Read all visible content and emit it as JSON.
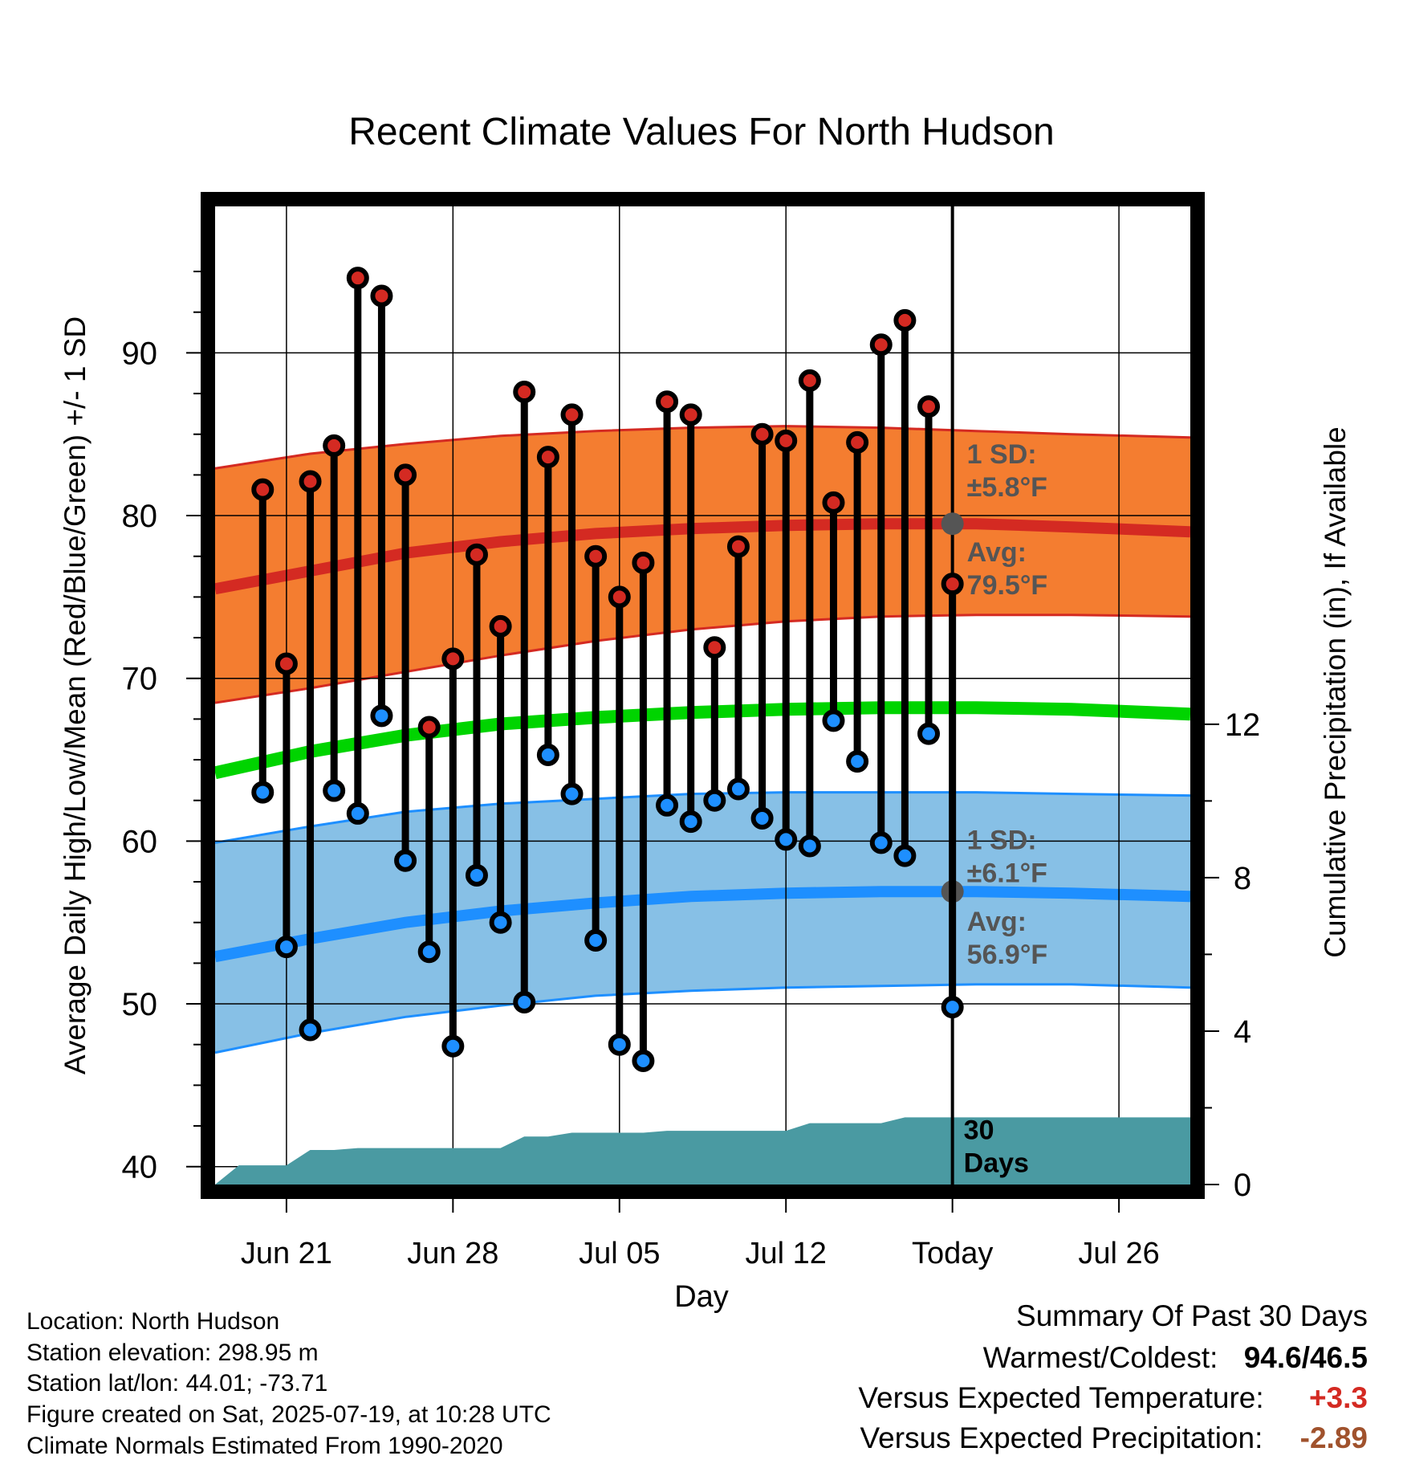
{
  "chart_data": {
    "type": "line",
    "title": "Recent Climate Values For North Hudson",
    "xlabel": "Day",
    "ylabel": "Average Daily High/Low/Mean (Red/Blue/Green) +/- 1 SD",
    "y2label": "Cumulative Precipitation (in), If Available",
    "ylim": [
      38.9,
      99
    ],
    "y2lim": [
      0,
      25.5
    ],
    "yticks": [
      "40",
      "50",
      "60",
      "70",
      "80",
      "90"
    ],
    "y2ticks": [
      "0",
      "4",
      "8",
      "12"
    ],
    "xlim": [
      "Jun 18",
      "Jul 29"
    ],
    "xticks": [
      {
        "date": "Jun 21",
        "label": "Jun 21"
      },
      {
        "date": "Jun 28",
        "label": "Jun 28"
      },
      {
        "date": "Jul 05",
        "label": "Jul 05"
      },
      {
        "date": "Jul 12",
        "label": "Jul 12"
      },
      {
        "date": "Jul 19",
        "label": "Today"
      },
      {
        "date": "Jul 26",
        "label": "Jul 26"
      }
    ],
    "grid": true,
    "colors": {
      "high_band": "#f47d30",
      "high_line": "#d42a22",
      "low_band": "#87c0e6",
      "low_line": "#1e8fff",
      "mean_line": "#00d400",
      "precip": "#4a9aa2",
      "obs_high": "#d42a22",
      "obs_low": "#1e8fff",
      "annotation": "#555555"
    },
    "observations": {
      "dates": [
        "Jun 20",
        "Jun 21",
        "Jun 22",
        "Jun 23",
        "Jun 24",
        "Jun 25",
        "Jun 26",
        "Jun 27",
        "Jun 28",
        "Jun 29",
        "Jun 30",
        "Jul 01",
        "Jul 02",
        "Jul 03",
        "Jul 04",
        "Jul 05",
        "Jul 06",
        "Jul 07",
        "Jul 08",
        "Jul 09",
        "Jul 10",
        "Jul 11",
        "Jul 12",
        "Jul 13",
        "Jul 14",
        "Jul 15",
        "Jul 16",
        "Jul 17",
        "Jul 18",
        "Jul 19"
      ],
      "high": [
        81.6,
        70.9,
        82.1,
        84.3,
        94.6,
        93.5,
        82.5,
        67.0,
        71.2,
        77.6,
        73.2,
        87.6,
        83.6,
        86.2,
        77.5,
        75.0,
        77.1,
        87.0,
        86.2,
        71.9,
        78.1,
        85.0,
        84.6,
        88.3,
        80.8,
        84.5,
        90.5,
        92.0,
        86.7,
        75.8
      ],
      "low": [
        63.0,
        53.5,
        48.4,
        63.1,
        61.7,
        67.7,
        58.8,
        53.2,
        47.4,
        57.9,
        55.0,
        50.1,
        65.3,
        62.9,
        53.9,
        47.5,
        46.5,
        62.2,
        61.2,
        62.5,
        63.2,
        61.4,
        60.1,
        59.7,
        67.4,
        64.9,
        59.9,
        59.1,
        66.6,
        49.8
      ]
    },
    "normals": {
      "dates": [
        "Jun 18",
        "Jun 22",
        "Jun 26",
        "Jun 30",
        "Jul 04",
        "Jul 08",
        "Jul 12",
        "Jul 16",
        "Jul 20",
        "Jul 24",
        "Jul 29"
      ],
      "high_avg": [
        75.5,
        76.6,
        77.7,
        78.4,
        78.9,
        79.2,
        79.4,
        79.5,
        79.5,
        79.3,
        79.0
      ],
      "high_minus_sd": [
        68.5,
        69.4,
        70.4,
        71.4,
        72.3,
        73.0,
        73.5,
        73.8,
        73.9,
        73.9,
        73.8
      ],
      "high_plus_sd": [
        82.9,
        83.8,
        84.4,
        84.9,
        85.2,
        85.4,
        85.5,
        85.4,
        85.2,
        85.0,
        84.8
      ],
      "mean": [
        64.2,
        65.5,
        66.5,
        67.2,
        67.6,
        67.9,
        68.1,
        68.2,
        68.2,
        68.1,
        67.8
      ],
      "low_avg": [
        52.9,
        54.0,
        55.0,
        55.7,
        56.2,
        56.6,
        56.8,
        56.9,
        56.9,
        56.8,
        56.6
      ],
      "low_minus_sd": [
        47.0,
        48.2,
        49.2,
        49.9,
        50.5,
        50.8,
        51.0,
        51.1,
        51.2,
        51.2,
        51.0
      ],
      "low_plus_sd": [
        59.9,
        60.9,
        61.8,
        62.3,
        62.6,
        62.9,
        63.0,
        63.0,
        63.0,
        62.9,
        62.8
      ]
    },
    "precipitation": {
      "dates": [
        "Jun 18",
        "Jun 19",
        "Jun 20",
        "Jun 21",
        "Jun 22",
        "Jun 23",
        "Jun 24",
        "Jun 25",
        "Jun 26",
        "Jun 27",
        "Jun 28",
        "Jun 29",
        "Jun 30",
        "Jul 01",
        "Jul 02",
        "Jul 03",
        "Jul 04",
        "Jul 05",
        "Jul 06",
        "Jul 07",
        "Jul 08",
        "Jul 09",
        "Jul 10",
        "Jul 11",
        "Jul 12",
        "Jul 13",
        "Jul 14",
        "Jul 15",
        "Jul 16",
        "Jul 17",
        "Jul 18",
        "Jul 19",
        "Jul 29"
      ],
      "cumulative_in": [
        0.0,
        0.5,
        0.5,
        0.5,
        0.9,
        0.9,
        0.95,
        0.95,
        0.95,
        0.95,
        0.95,
        0.95,
        0.95,
        1.25,
        1.25,
        1.35,
        1.35,
        1.35,
        1.35,
        1.4,
        1.4,
        1.4,
        1.4,
        1.4,
        1.4,
        1.6,
        1.6,
        1.6,
        1.6,
        1.75,
        1.75,
        1.75,
        1.75
      ]
    },
    "today_markers": {
      "date": "Jul 19",
      "high_avg": 79.5,
      "low_avg": 56.9
    },
    "annotations": {
      "high_sd": [
        "1 SD:",
        "±5.8°F"
      ],
      "high_avg": [
        "Avg:",
        "79.5°F"
      ],
      "low_sd": [
        "1 SD:",
        "±6.1°F"
      ],
      "low_avg": [
        "Avg:",
        "56.9°F"
      ],
      "precip_days": [
        "30",
        "Days"
      ]
    }
  },
  "info": {
    "location": "Location: North Hudson",
    "elevation": "Station elevation: 298.95 m",
    "latlon": "Station lat/lon: 44.01; -73.71",
    "created": "Figure created on Sat, 2025-07-19, at 10:28 UTC",
    "normals": "Climate Normals Estimated From 1990-2020"
  },
  "summary": {
    "title": "Summary Of Past 30 Days",
    "warmest_label": "Warmest/Coldest:",
    "warmest_value": "94.6/46.5",
    "temp_label": "Versus Expected Temperature:",
    "temp_value": "+3.3",
    "temp_color": "#d42a22",
    "precip_label": "Versus Expected Precipitation:",
    "precip_value": "-2.89",
    "precip_color": "#a0522d"
  }
}
